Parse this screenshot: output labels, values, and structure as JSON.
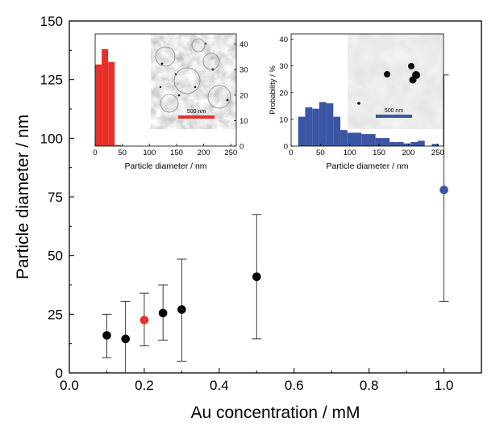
{
  "chart_data": [
    {
      "type": "scatter",
      "xlabel": "Au concentration / mM",
      "ylabel": "Particle diameter / nm",
      "xlim": [
        0.0,
        1.1
      ],
      "ylim": [
        0,
        150
      ],
      "x_ticks": [
        "0.0",
        "0.2",
        "0.4",
        "0.6",
        "0.8",
        "1.0"
      ],
      "y_ticks": [
        "0",
        "25",
        "50",
        "75",
        "100",
        "125",
        "150"
      ],
      "grid": false,
      "points": [
        {
          "x": 0.1,
          "y": 16.0,
          "err_low": 6.5,
          "err_high": 25.0,
          "color": "#000000"
        },
        {
          "x": 0.15,
          "y": 14.5,
          "err_low": 0.0,
          "err_high": 30.5,
          "color": "#000000"
        },
        {
          "x": 0.2,
          "y": 22.5,
          "err_low": 11.5,
          "err_high": 34.0,
          "color": "#e8302a"
        },
        {
          "x": 0.25,
          "y": 25.5,
          "err_low": 14.0,
          "err_high": 37.5,
          "color": "#000000"
        },
        {
          "x": 0.3,
          "y": 27.0,
          "err_low": 5.0,
          "err_high": 48.5,
          "color": "#000000"
        },
        {
          "x": 0.5,
          "y": 41.0,
          "err_low": 14.5,
          "err_high": 67.5,
          "color": "#000000"
        },
        {
          "x": 1.0,
          "y": 78.0,
          "err_low": 30.5,
          "err_high": 127.0,
          "color": "#3b55a5"
        }
      ]
    },
    {
      "type": "bar",
      "xlabel": "Particle diameter / nm",
      "ylabel": "",
      "xlim": [
        0,
        260
      ],
      "ylim": [
        0,
        44
      ],
      "x_ticks": [
        "0",
        "50",
        "100",
        "150",
        "200",
        "250"
      ],
      "y_ticks": [
        "0",
        "10",
        "20",
        "30",
        "40"
      ],
      "y_axis_side": "right",
      "bin_width": 12,
      "bin_starts": [
        0,
        12,
        24,
        36
      ],
      "values": [
        32,
        38,
        33,
        0.4
      ],
      "color": "#e8302a",
      "image": {
        "scale_bar_label": "500 nm",
        "scale_bar_color": "#e8302a"
      }
    },
    {
      "type": "bar",
      "xlabel": "Particle diameter / nm",
      "ylabel": "Probability / %",
      "xlim": [
        0,
        260
      ],
      "ylim": [
        0,
        42
      ],
      "x_ticks": [
        "0",
        "50",
        "100",
        "150",
        "200",
        "250"
      ],
      "y_ticks": [
        "0",
        "10",
        "20",
        "30",
        "40"
      ],
      "y_axis_side": "left",
      "bin_width": 12,
      "bin_starts": [
        12,
        24,
        36,
        48,
        60,
        72,
        84,
        96,
        108,
        120,
        132,
        144,
        156,
        168,
        180,
        192,
        204,
        216,
        228,
        240
      ],
      "values": [
        11,
        14.5,
        14,
        16.5,
        16,
        11,
        6,
        5,
        5,
        4.5,
        4.5,
        3,
        3,
        1.5,
        1.5,
        1,
        1.5,
        2,
        0,
        0.8
      ],
      "color": "#3b55a5",
      "image": {
        "scale_bar_label": "500 nm",
        "scale_bar_color": "#3b55a5"
      }
    }
  ]
}
